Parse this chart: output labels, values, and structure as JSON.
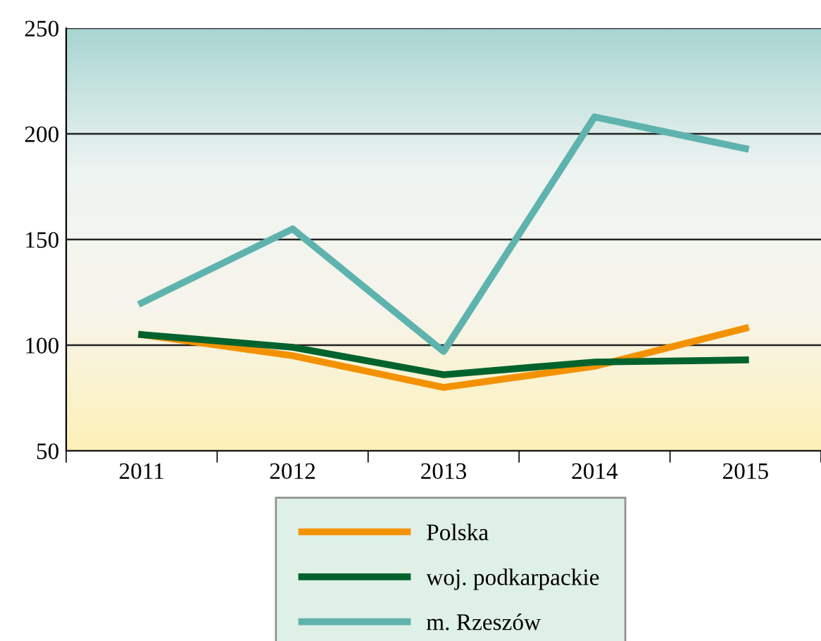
{
  "chart_data": {
    "type": "line",
    "categories": [
      "2011",
      "2012",
      "2013",
      "2014",
      "2015"
    ],
    "series": [
      {
        "name": "Polska",
        "color": "#f39200",
        "values": [
          105,
          95,
          80,
          90,
          108
        ]
      },
      {
        "name": "woj. podkarpackie",
        "color": "#00632e",
        "values": [
          105,
          99,
          86,
          92,
          93
        ]
      },
      {
        "name": "m. Rzeszów",
        "color": "#5fb3ae",
        "values": [
          120,
          155,
          97,
          208,
          193
        ]
      }
    ],
    "ylim": [
      50,
      250
    ],
    "yticks": [
      50,
      100,
      150,
      200,
      250
    ],
    "grid": "y",
    "legend": "bottom",
    "marker": "none",
    "line_style": "solid"
  }
}
